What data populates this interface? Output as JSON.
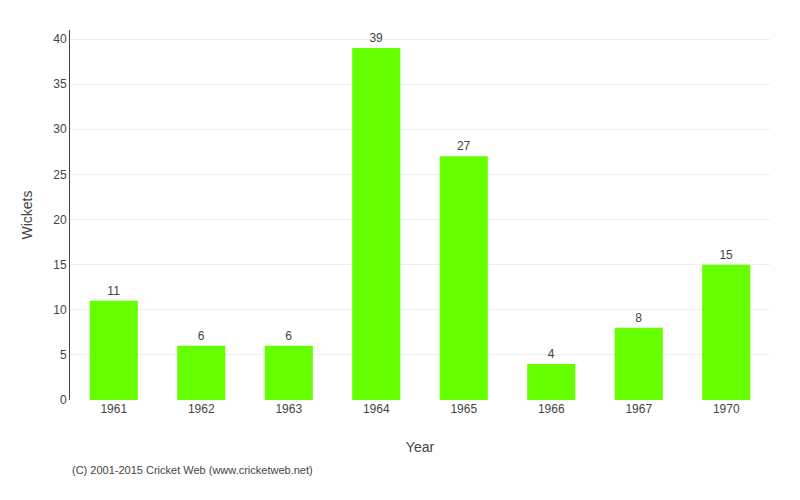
{
  "chart_data": {
    "type": "bar",
    "categories": [
      "1961",
      "1962",
      "1963",
      "1964",
      "1965",
      "1966",
      "1967",
      "1970"
    ],
    "values": [
      11,
      6,
      6,
      39,
      27,
      4,
      8,
      15
    ],
    "color": "#66ff00",
    "xlabel": "Year",
    "ylabel": "Wickets",
    "ylim": [
      0,
      41
    ],
    "yticks": [
      0,
      5,
      10,
      15,
      20,
      25,
      30,
      35,
      40
    ],
    "grid": true,
    "data_labels": true,
    "annotations": [
      "(C) 2001-2015 Cricket Web (www.cricketweb.net)"
    ]
  }
}
